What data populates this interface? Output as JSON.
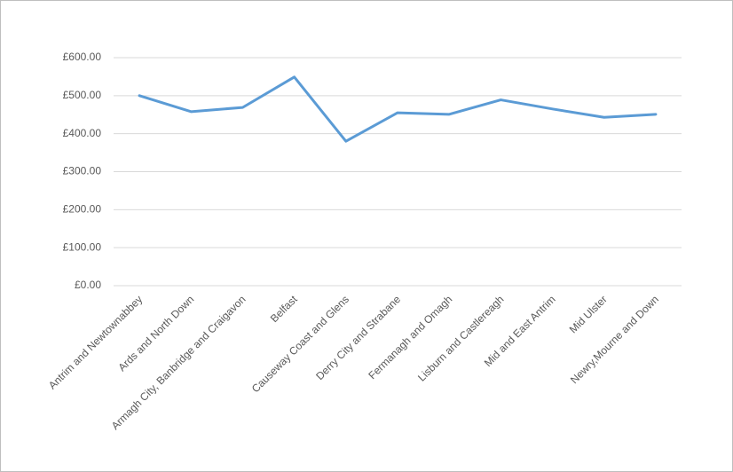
{
  "chart_data": {
    "type": "line",
    "categories": [
      "Antrim and Newtownabbey",
      "Ards and North Down",
      "Armagh City, Banbridge and Craigavon",
      "Belfast",
      "Causeway Coast and Glens",
      "Derry City and Strabane",
      "Fermanagh and Omagh",
      "Lisburn and Castlereagh",
      "Mid and East Antrim",
      "Mid Ulster",
      "Newry,Mourne and Down"
    ],
    "series": [
      {
        "color": "#5b9bd5",
        "values": [
          500,
          458,
          469,
          549,
          380,
          455,
          451,
          489,
          465,
          443,
          451
        ]
      }
    ],
    "ylim": [
      0,
      600
    ],
    "yticks": [
      {
        "value": 0,
        "label": "£0.00"
      },
      {
        "value": 100,
        "label": "£100.00"
      },
      {
        "value": 200,
        "label": "£200.00"
      },
      {
        "value": 300,
        "label": "£300.00"
      },
      {
        "value": 400,
        "label": "£400.00"
      },
      {
        "value": 500,
        "label": "£500.00"
      },
      {
        "value": 600,
        "label": "£600.00"
      }
    ],
    "grid": true
  }
}
